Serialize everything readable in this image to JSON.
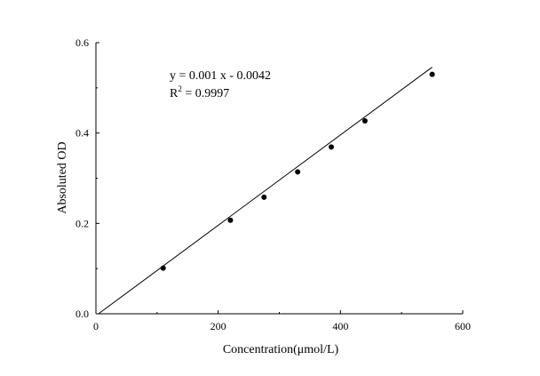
{
  "chart_data": {
    "type": "scatter",
    "title": "",
    "xlabel": "Concentration(μmol/L)",
    "ylabel": "Absoluted OD",
    "xlim": [
      0,
      600
    ],
    "ylim": [
      0,
      0.6
    ],
    "x_ticks": [
      "0",
      "200",
      "400",
      "600"
    ],
    "y_ticks": [
      "0.0",
      "0.2",
      "0.4",
      "0.6"
    ],
    "series": [
      {
        "marker": "filled-circle",
        "x": [
          110,
          220,
          275,
          330,
          385,
          440,
          550
        ],
        "y": [
          0.101,
          0.207,
          0.258,
          0.314,
          0.369,
          0.427,
          0.53
        ]
      }
    ],
    "fit_line": {
      "slope": 0.001,
      "intercept": -0.0042,
      "x_range": [
        0,
        550
      ]
    },
    "annotations": {
      "equation": "y = 0.001 x - 0.0042",
      "r2_prefix": "R",
      "r2_sup": "2",
      "r2_value": " = 0.9997"
    },
    "grid": false,
    "legend": "none",
    "colors": {
      "line": "#000000",
      "marker": "#000000"
    }
  }
}
